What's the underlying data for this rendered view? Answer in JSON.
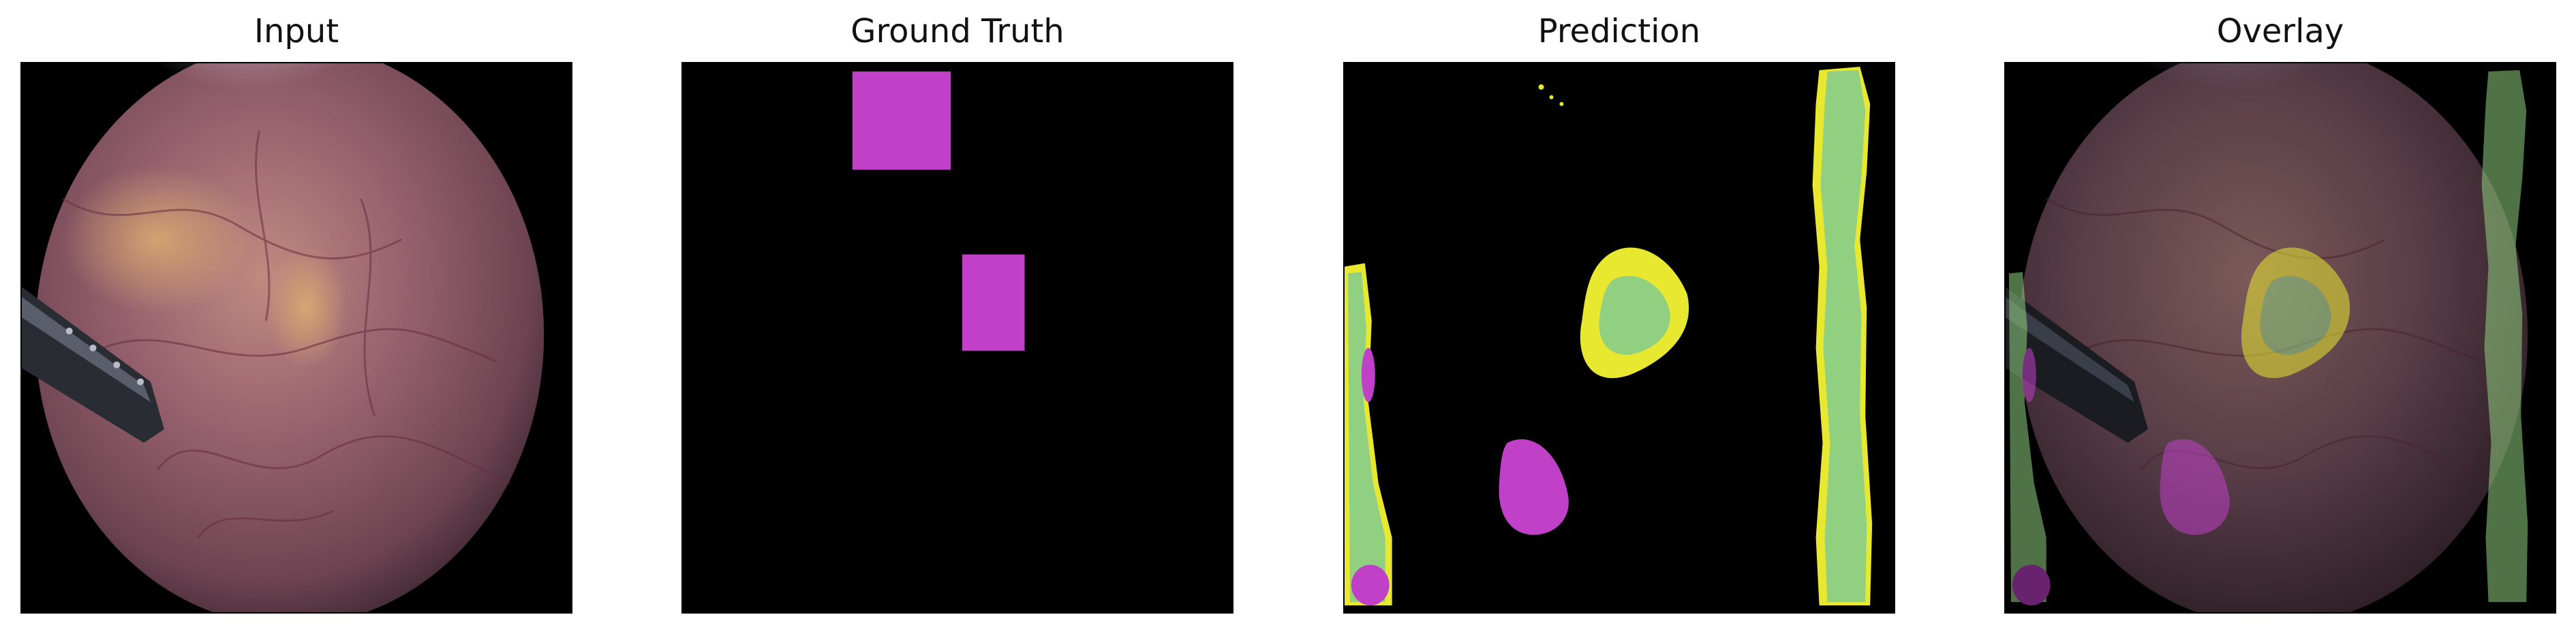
{
  "panels": [
    {
      "title": "Input",
      "icon": "endoscopy-image"
    },
    {
      "title": "Ground Truth",
      "icon": "segmentation-mask"
    },
    {
      "title": "Prediction",
      "icon": "segmentation-mask"
    },
    {
      "title": "Overlay",
      "icon": "overlay-image"
    }
  ],
  "colors": {
    "magenta": "#c040c8",
    "yellow": "#e8e830",
    "green": "#90d080",
    "tissue": "#8a5a68"
  }
}
